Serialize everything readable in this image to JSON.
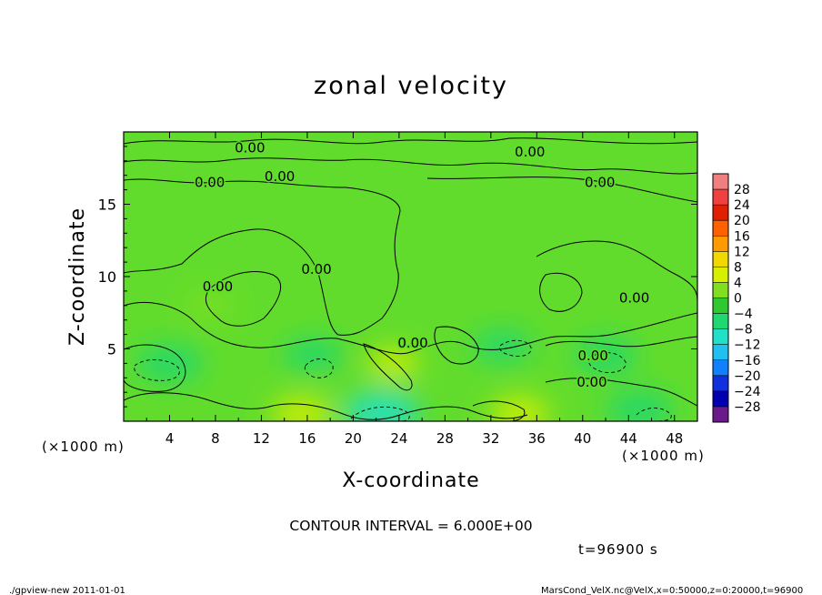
{
  "chart_data": {
    "type": "heatmap",
    "title": "zonal velocity",
    "xlabel": "X-coordinate",
    "ylabel": "Z-coordinate",
    "x_unit_label": "(×1000 m)",
    "y_unit_label": "(×1000 m)",
    "xlim": [
      0,
      50
    ],
    "ylim": [
      0,
      20
    ],
    "x_ticks": [
      4,
      8,
      12,
      16,
      20,
      24,
      28,
      32,
      36,
      40,
      44,
      48
    ],
    "y_ticks": [
      5,
      10,
      15
    ],
    "contour_interval_text": "CONTOUR INTERVAL = 6.000E+00",
    "time_text": "t=96900 s",
    "contour_labels": [
      {
        "text": "0.00",
        "x": 11.0,
        "y": 18.6
      },
      {
        "text": "0.00",
        "x": 35.4,
        "y": 18.3
      },
      {
        "text": "0.00",
        "x": 7.5,
        "y": 16.2
      },
      {
        "text": "0.00",
        "x": 13.6,
        "y": 16.6
      },
      {
        "text": "0.00",
        "x": 41.5,
        "y": 16.2
      },
      {
        "text": "0.00",
        "x": 8.2,
        "y": 9.0
      },
      {
        "text": "0.00",
        "x": 16.8,
        "y": 10.2
      },
      {
        "text": "0.00",
        "x": 25.2,
        "y": 5.1
      },
      {
        "text": "0.00",
        "x": 44.5,
        "y": 8.2
      },
      {
        "text": "0.00",
        "x": 40.8,
        "y": 2.4
      },
      {
        "text": "0.00",
        "x": 40.9,
        "y": 4.2
      }
    ],
    "colorbar": {
      "levels": [
        "28",
        "24",
        "20",
        "16",
        "12",
        "8",
        "4",
        "0",
        "−4",
        "−8",
        "−12",
        "−16",
        "−20",
        "−24",
        "−28"
      ],
      "colors": [
        "#f08080",
        "#f04040",
        "#e02000",
        "#ff6000",
        "#ff9a00",
        "#f0d800",
        "#d8f000",
        "#80e020",
        "#30c830",
        "#20d870",
        "#20e0c8",
        "#20c0f0",
        "#1080ff",
        "#1030e0",
        "#0000b0",
        "#6a1a8a"
      ]
    },
    "field_regions": [
      {
        "x": 4.0,
        "y": 4.0,
        "value": -8
      },
      {
        "x": 16.5,
        "y": 4.6,
        "value": -6
      },
      {
        "x": 22.5,
        "y": 0.6,
        "value": -10
      },
      {
        "x": 33.0,
        "y": 5.2,
        "value": -6
      },
      {
        "x": 42.0,
        "y": 4.5,
        "value": -7
      },
      {
        "x": 45.0,
        "y": 0.8,
        "value": -8
      },
      {
        "x": 23.5,
        "y": 4.0,
        "value": 4
      },
      {
        "x": 15.5,
        "y": 0.5,
        "value": 6
      },
      {
        "x": 34.5,
        "y": 0.5,
        "value": 6
      },
      {
        "x": 7.5,
        "y": 8.0,
        "value": 2
      }
    ]
  },
  "footer": {
    "left": "./gpview-new  2011-01-01",
    "right": "MarsCond_VelX.nc@VelX,x=0:50000,z=0:20000,t=96900"
  }
}
